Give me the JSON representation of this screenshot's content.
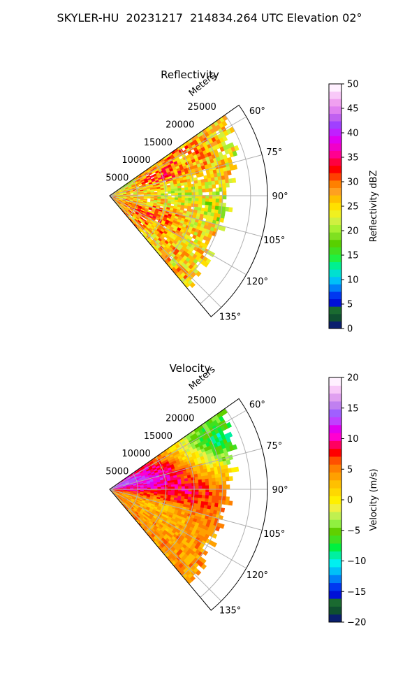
{
  "title": "SKYLER-HU  20231217  214834.264 UTC Elevation 02°",
  "chart_data": [
    {
      "type": "heatmap",
      "projection": "polar-sector",
      "title": "Reflectivity",
      "range_label": "Meters",
      "range_ticks": [
        5000,
        10000,
        15000,
        20000,
        25000
      ],
      "range_tick_labels": [
        "5000",
        "10000",
        "15000",
        "20000",
        "25000"
      ],
      "rmax": 28000,
      "azimuth_range_deg": [
        55,
        140
      ],
      "azimuth_ticks": [
        60,
        75,
        90,
        105,
        120,
        135
      ],
      "azimuth_tick_labels": [
        "60°",
        "75°",
        "90°",
        "105°",
        "120°",
        "135°"
      ],
      "grid": true,
      "colorbar": {
        "label": "Reflectivity dBZ",
        "min": 0,
        "max": 50,
        "ticks": [
          0,
          5,
          10,
          15,
          20,
          25,
          30,
          35,
          40,
          45,
          50
        ],
        "tick_labels": [
          "0",
          "5",
          "10",
          "15",
          "20",
          "25",
          "30",
          "35",
          "40",
          "45",
          "50"
        ],
        "colors": [
          "#0a1f6e",
          "#0f5030",
          "#1a6a30",
          "#0010d8",
          "#0038f0",
          "#0080f8",
          "#00c0f8",
          "#00e0d0",
          "#00f090",
          "#20f040",
          "#40e020",
          "#58d000",
          "#80e020",
          "#a8f030",
          "#d0f040",
          "#f0f020",
          "#ffe000",
          "#ffc000",
          "#ffa020",
          "#ff8000",
          "#ff4000",
          "#ff0000",
          "#ff0040",
          "#ff0090",
          "#f000c8",
          "#e000f0",
          "#c020ff",
          "#a040ff",
          "#c060f0",
          "#e080f0",
          "#f0a0f0",
          "#f8c8f8",
          "#fff0ff"
        ]
      },
      "field": [
        {
          "r": 2000,
          "az": 60,
          "v": 22
        },
        {
          "r": 10000,
          "az": 68,
          "v": 33
        },
        {
          "r": 15000,
          "az": 70,
          "v": 28
        },
        {
          "r": 12000,
          "az": 88,
          "v": 22
        },
        {
          "r": 20000,
          "az": 95,
          "v": 21
        },
        {
          "r": 9000,
          "az": 115,
          "v": 31
        },
        {
          "r": 18000,
          "az": 120,
          "v": 25
        },
        {
          "r": 25000,
          "az": 78,
          "v": 23
        }
      ]
    },
    {
      "type": "heatmap",
      "projection": "polar-sector",
      "title": "Velocity",
      "range_label": "Meters",
      "range_ticks": [
        5000,
        10000,
        15000,
        20000,
        25000
      ],
      "range_tick_labels": [
        "5000",
        "10000",
        "15000",
        "20000",
        "25000"
      ],
      "rmax": 28000,
      "azimuth_range_deg": [
        55,
        140
      ],
      "azimuth_ticks": [
        60,
        75,
        90,
        105,
        120,
        135
      ],
      "azimuth_tick_labels": [
        "60°",
        "75°",
        "90°",
        "105°",
        "120°",
        "135°"
      ],
      "grid": true,
      "colorbar": {
        "label": "Velocity (m/s)",
        "min": -20,
        "max": 20,
        "ticks": [
          -20,
          -15,
          -10,
          -5,
          0,
          5,
          10,
          15,
          20
        ],
        "tick_labels": [
          "−20",
          "−15",
          "−10",
          "−5",
          "0",
          "5",
          "10",
          "15",
          "20"
        ],
        "colors": [
          "#0a1f6e",
          "#0f5030",
          "#1a6a30",
          "#0010d8",
          "#0038f0",
          "#0080f8",
          "#00c0f8",
          "#00f0f0",
          "#00f0a0",
          "#00f040",
          "#40e020",
          "#60d000",
          "#90f040",
          "#c0f050",
          "#f0f040",
          "#fff000",
          "#ffd800",
          "#ffc000",
          "#ffa000",
          "#ff8000",
          "#ff5000",
          "#ff0000",
          "#ff0060",
          "#ff00d0",
          "#e000f0",
          "#c040ff",
          "#a060ff",
          "#c080f0",
          "#e0a0f0",
          "#f8c8f8",
          "#fff0ff"
        ]
      },
      "field": [
        {
          "r": 3000,
          "az": 70,
          "v": 15
        },
        {
          "r": 8000,
          "az": 80,
          "v": 12
        },
        {
          "r": 12000,
          "az": 92,
          "v": 9
        },
        {
          "r": 10000,
          "az": 110,
          "v": 2
        },
        {
          "r": 22000,
          "az": 65,
          "v": -10
        },
        {
          "r": 24000,
          "az": 58,
          "v": -5
        }
      ]
    }
  ]
}
